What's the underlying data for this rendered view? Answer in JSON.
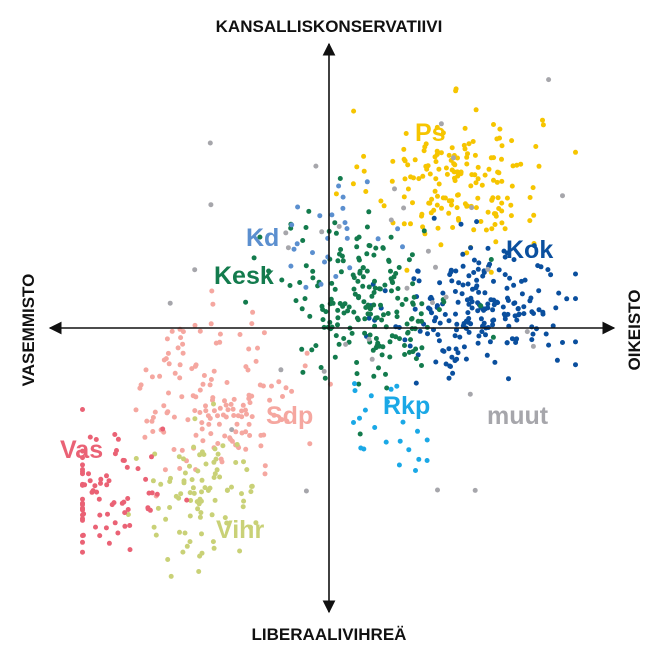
{
  "chart_data": {
    "type": "scatter",
    "title": "",
    "axes": {
      "top_label": "KANSALLISKONSERVATIIVI",
      "bottom_label": "LIBERAALIVIHREÄ",
      "left_label": "VASEMMISTO",
      "right_label": "OIKEISTO",
      "xlim": [
        -1,
        1
      ],
      "ylim": [
        -1,
        1
      ],
      "grid": false,
      "tick_labels": false
    },
    "series": [
      {
        "name": "Ps",
        "color": "#f6c500",
        "center": [
          0.48,
          0.55
        ],
        "spread": [
          0.16,
          0.13
        ],
        "count": 170,
        "label": "Ps"
      },
      {
        "name": "Kok",
        "color": "#0a4f9e",
        "center": [
          0.58,
          0.07
        ],
        "spread": [
          0.17,
          0.12
        ],
        "count": 210,
        "label": "Kok"
      },
      {
        "name": "Kesk",
        "color": "#137b4d",
        "center": [
          0.15,
          0.1
        ],
        "spread": [
          0.16,
          0.15
        ],
        "count": 200,
        "label": "Kesk"
      },
      {
        "name": "Kd",
        "color": "#5b8fcf",
        "center": [
          0.02,
          0.35
        ],
        "spread": [
          0.14,
          0.1
        ],
        "count": 25,
        "label": "Kd"
      },
      {
        "name": "Rkp",
        "color": "#1aa8e6",
        "center": [
          0.2,
          -0.35
        ],
        "spread": [
          0.08,
          0.09
        ],
        "count": 22,
        "label": "Rkp"
      },
      {
        "name": "muut",
        "color": "#a6a6ab",
        "center": [
          0.2,
          0.05
        ],
        "spread": [
          0.45,
          0.35
        ],
        "count": 35,
        "label": "muut"
      },
      {
        "name": "Sdp",
        "color": "#f5a7a0",
        "center": [
          -0.42,
          -0.25
        ],
        "spread": [
          0.15,
          0.15
        ],
        "count": 150,
        "label": "Sdp"
      },
      {
        "name": "Vihr",
        "color": "#c9d177",
        "center": [
          -0.48,
          -0.62
        ],
        "spread": [
          0.12,
          0.12
        ],
        "count": 90,
        "label": "Vihr"
      },
      {
        "name": "Vas",
        "color": "#ea6275",
        "center": [
          -0.85,
          -0.62
        ],
        "spread": [
          0.12,
          0.13
        ],
        "count": 75,
        "label": "Vas"
      }
    ]
  }
}
